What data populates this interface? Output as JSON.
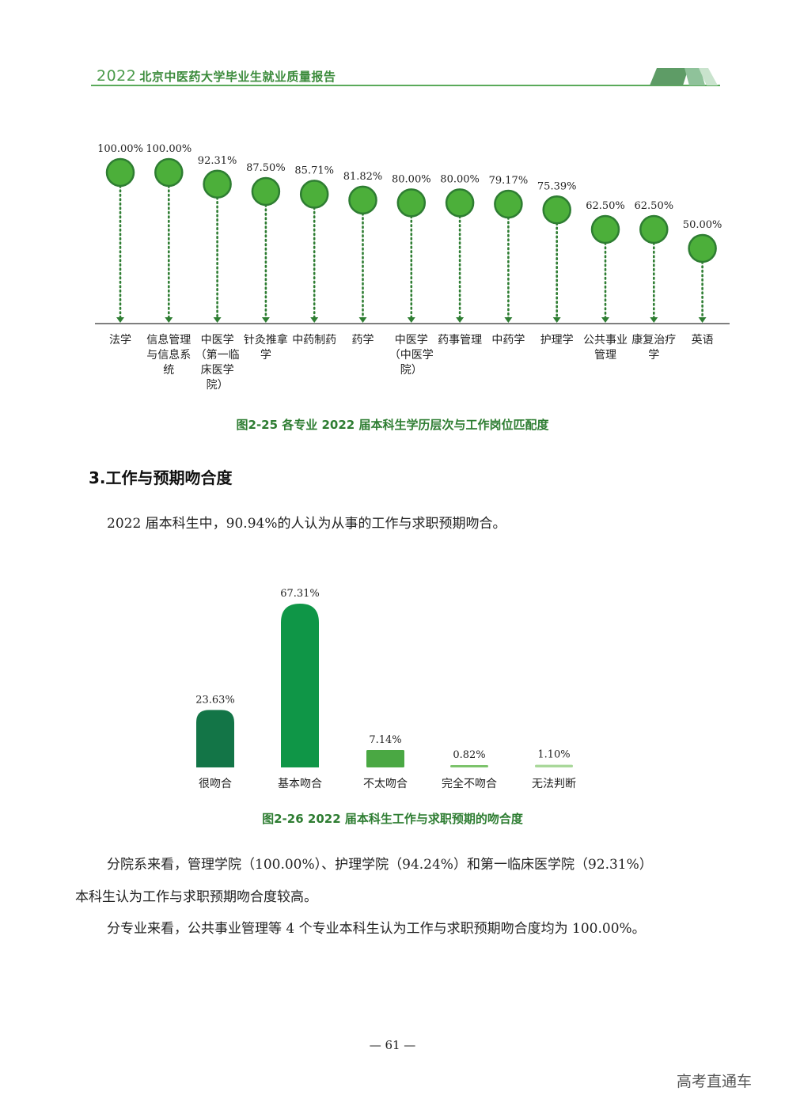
{
  "header": {
    "year": "2022",
    "title": "北京中医药大学毕业生就业质量报告"
  },
  "figure1": {
    "caption": "图2-25  各专业 2022 届本科生学历层次与工作岗位匹配度",
    "chart_data": {
      "type": "scatter",
      "categories": [
        [
          "法学"
        ],
        [
          "信息管理",
          "与信息系",
          "统"
        ],
        [
          "中医学",
          "（第一临",
          "床医学",
          "院）"
        ],
        [
          "针灸推拿",
          "学"
        ],
        [
          "中药制药"
        ],
        [
          "药学"
        ],
        [
          "中医学",
          "（中医学",
          "院）"
        ],
        [
          "药事管理"
        ],
        [
          "中药学"
        ],
        [
          "护理学"
        ],
        [
          "公共事业",
          "管理"
        ],
        [
          "康复治疗",
          "学"
        ],
        [
          "英语"
        ]
      ],
      "values": [
        100.0,
        100.0,
        92.31,
        87.5,
        85.71,
        81.82,
        80.0,
        80.0,
        79.17,
        75.39,
        62.5,
        62.5,
        50.0
      ],
      "labels": [
        "100.00%",
        "100.00%",
        "92.31%",
        "87.50%",
        "85.71%",
        "81.82%",
        "80.00%",
        "80.00%",
        "79.17%",
        "75.39%",
        "62.50%",
        "62.50%",
        "50.00%"
      ],
      "color": "#4caf3a",
      "stroke": "#2e7d32"
    }
  },
  "section": {
    "heading": "3.工作与预期吻合度",
    "intro": "2022 届本科生中，90.94%的人认为从事的工作与求职预期吻合。"
  },
  "figure2": {
    "caption": "图2-26  2022 届本科生工作与求职预期的吻合度",
    "chart_data": {
      "type": "bar",
      "categories": [
        "很吻合",
        "基本吻合",
        "不太吻合",
        "完全不吻合",
        "无法判断"
      ],
      "values": [
        23.63,
        67.31,
        7.14,
        0.82,
        1.1
      ],
      "labels": [
        "23.63%",
        "67.31%",
        "7.14%",
        "0.82%",
        "1.10%"
      ],
      "colors": [
        "#137547",
        "#0f9647",
        "#4aa843",
        "#7cc36b",
        "#a9d89a"
      ]
    }
  },
  "body": {
    "para1_line1": "分院系来看，管理学院（100.00%）、护理学院（94.24%）和第一临床医学院（92.31%）",
    "para1_line2": "本科生认为工作与求职预期吻合度较高。",
    "para2": "分专业来看，公共事业管理等 4 个专业本科生认为工作与求职预期吻合度均为 100.00%。"
  },
  "footer": {
    "page": "— 61 —",
    "watermark": "高考直通车"
  }
}
